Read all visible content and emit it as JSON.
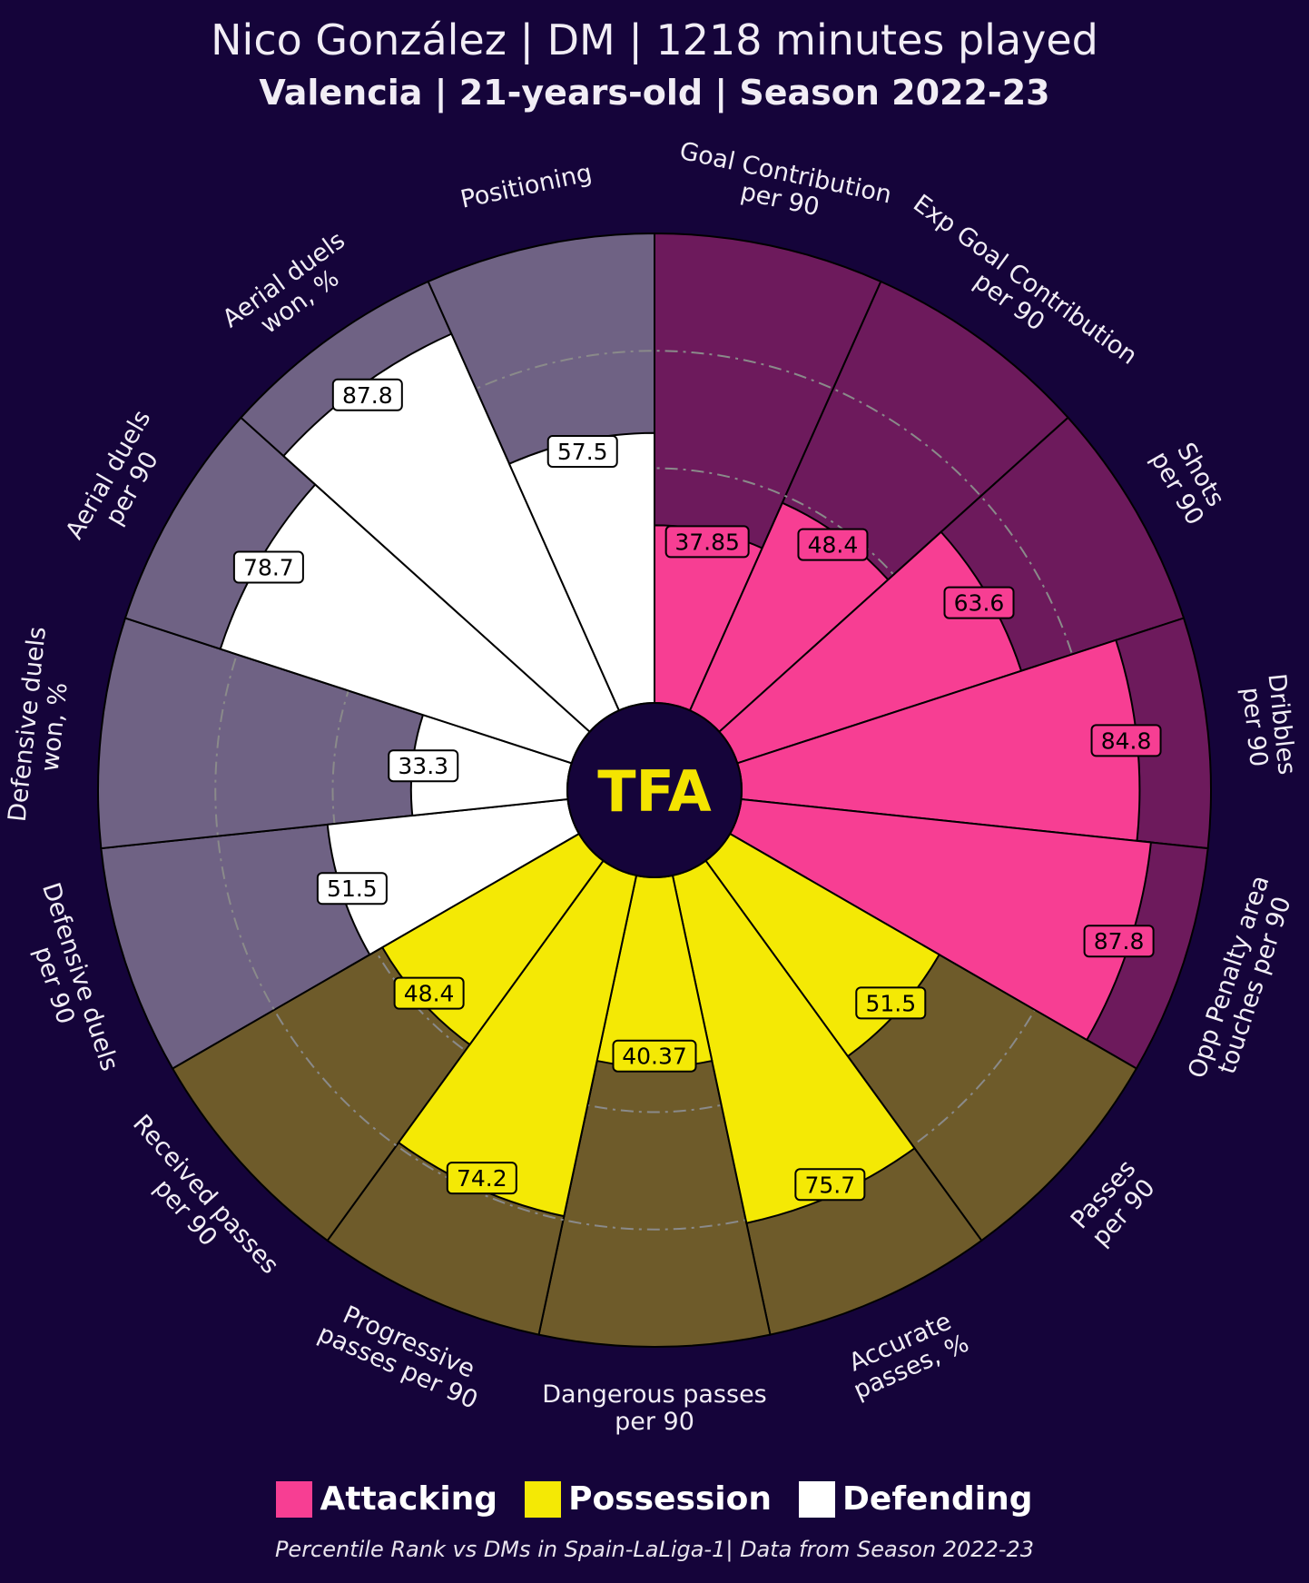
{
  "header": {
    "title": "Nico González | DM | 1218 minutes played",
    "subtitle": "Valencia | 21-years-old | Season 2022-23"
  },
  "logo": {
    "text": "TFA",
    "color": "#f4e400",
    "background": "#15043a"
  },
  "legend": {
    "items": [
      {
        "label": "Attacking",
        "color": "#f73e93"
      },
      {
        "label": "Possession",
        "color": "#f4e905"
      },
      {
        "label": "Defending",
        "color": "#ffffff"
      }
    ]
  },
  "footer": {
    "text": "Percentile Rank vs DMs in Spain-LaLiga-1| Data from Season 2022-23"
  },
  "colors": {
    "background": "#15043a",
    "attacking": "#f73e93",
    "attacking_bg": "#6d1a5c",
    "possession": "#f4e905",
    "possession_bg": "#6e5b2a",
    "defending": "#ffffff",
    "defending_bg": "#6f6284",
    "gridline": "#8a8a8a",
    "text": "#f1edf5"
  },
  "chart_data": {
    "type": "polar-bar",
    "scale": [
      0,
      100
    ],
    "gridlines": [
      50,
      75
    ],
    "categories": [
      "Goal Contribution\nper 90",
      "Exp Goal Contribution\nper 90",
      "Shots\nper 90",
      "Dribbles\nper 90",
      "Opp Penalty area\ntouches per 90",
      "Passes\nper 90",
      "Accurate\npasses, %",
      "Dangerous passes\nper 90",
      "Progressive\npasses per 90",
      "Received passes\nper 90",
      "Defensive duels\nper 90",
      "Defensive duels\nwon, %",
      "Aerial duels\nper 90",
      "Aerial duels\nwon, %",
      "Positioning"
    ],
    "groups": [
      "Attacking",
      "Attacking",
      "Attacking",
      "Attacking",
      "Attacking",
      "Possession",
      "Possession",
      "Possession",
      "Possession",
      "Possession",
      "Defending",
      "Defending",
      "Defending",
      "Defending",
      "Defending"
    ],
    "values": [
      37.85,
      48.4,
      63.6,
      84.8,
      87.8,
      51.5,
      75.7,
      40.37,
      74.2,
      48.4,
      51.5,
      33.3,
      78.7,
      87.8,
      57.5
    ],
    "value_labels": [
      "37.85",
      "48.4",
      "63.6",
      "84.8",
      "87.8",
      "51.5",
      "75.7",
      "40.37",
      "74.2",
      "48.4",
      "51.5",
      "33.3",
      "78.7",
      "87.8",
      "57.5"
    ]
  }
}
